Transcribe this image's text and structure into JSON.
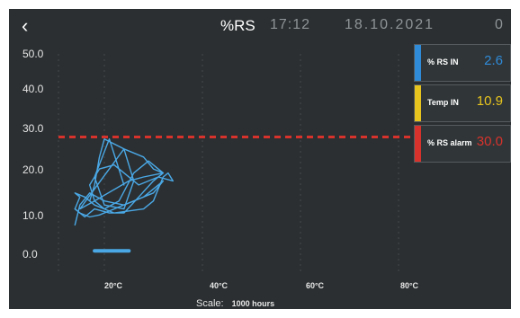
{
  "header": {
    "back_icon": "‹",
    "title": "%RS",
    "time": "17:12",
    "date": "18.10.2021",
    "counter": "0"
  },
  "chart_data": {
    "type": "line",
    "y_ticks": [
      "50.0",
      "40.0",
      "30.0",
      "20.0",
      "10.0",
      "0.0"
    ],
    "x_ticks": [
      "20°C",
      "40°C",
      "60°C",
      "80°C"
    ],
    "alarm_threshold": 30.0,
    "scale_label": "Scale:",
    "scale_value": "1000 hours",
    "colors": {
      "trace": "#4aa8e6",
      "alarm_line": "#d8322c",
      "grid": "#44494c"
    },
    "series": [
      {
        "values": [
          [
            24,
            18
          ],
          [
            21,
            29.5
          ],
          [
            18,
            20
          ],
          [
            20,
            13
          ],
          [
            24,
            12
          ],
          [
            26,
            19
          ],
          [
            24,
            27
          ],
          [
            18,
            17
          ],
          [
            15,
            12
          ],
          [
            18,
            14
          ],
          [
            25,
            19
          ],
          [
            28,
            20
          ],
          [
            32,
            21
          ],
          [
            30,
            19
          ],
          [
            27,
            15
          ],
          [
            24,
            11
          ],
          [
            21,
            11
          ],
          [
            18,
            12
          ],
          [
            16,
            10
          ],
          [
            14,
            12
          ],
          [
            15,
            15
          ],
          [
            14,
            16
          ],
          [
            16,
            15
          ],
          [
            18,
            13
          ],
          [
            22,
            11
          ],
          [
            28,
            12
          ],
          [
            30,
            14
          ],
          [
            31,
            17
          ],
          [
            32,
            20
          ],
          [
            33,
            21
          ],
          [
            34,
            19
          ],
          [
            31,
            20
          ],
          [
            27,
            18
          ],
          [
            22,
            23
          ],
          [
            19,
            22
          ],
          [
            17,
            18
          ],
          [
            18,
            14
          ],
          [
            20,
            12
          ],
          [
            23,
            14
          ],
          [
            26,
            21
          ],
          [
            29,
            24
          ],
          [
            32,
            21
          ],
          [
            30,
            22
          ],
          [
            28,
            25
          ],
          [
            24,
            27
          ],
          [
            20,
            29.5
          ],
          [
            19,
            25
          ],
          [
            18,
            18
          ],
          [
            17,
            14
          ]
        ]
      },
      {
        "values": [
          [
            14,
            8
          ],
          [
            15,
            13
          ],
          [
            17,
            16
          ],
          [
            20,
            14
          ],
          [
            24,
            13
          ],
          [
            28,
            15
          ],
          [
            31,
            18
          ],
          [
            32,
            19
          ],
          [
            30,
            16
          ],
          [
            26,
            14
          ],
          [
            22,
            12
          ],
          [
            19,
            10.5
          ],
          [
            17,
            10
          ],
          [
            15,
            11
          ],
          [
            14,
            12
          ]
        ]
      },
      {
        "values": [
          [
            18,
            1.5
          ],
          [
            22,
            1.5
          ],
          [
            25,
            1.5
          ],
          [
            21,
            1.5
          ],
          [
            18,
            1.5
          ]
        ]
      }
    ]
  },
  "panel": [
    {
      "label": "% RS IN",
      "value": "2.6",
      "color": "#2f8ad8"
    },
    {
      "label": "Temp IN",
      "value": "10.9",
      "color": "#e8c41e"
    },
    {
      "label": "% RS alarm",
      "value": "30.0",
      "color": "#d8322c"
    }
  ]
}
